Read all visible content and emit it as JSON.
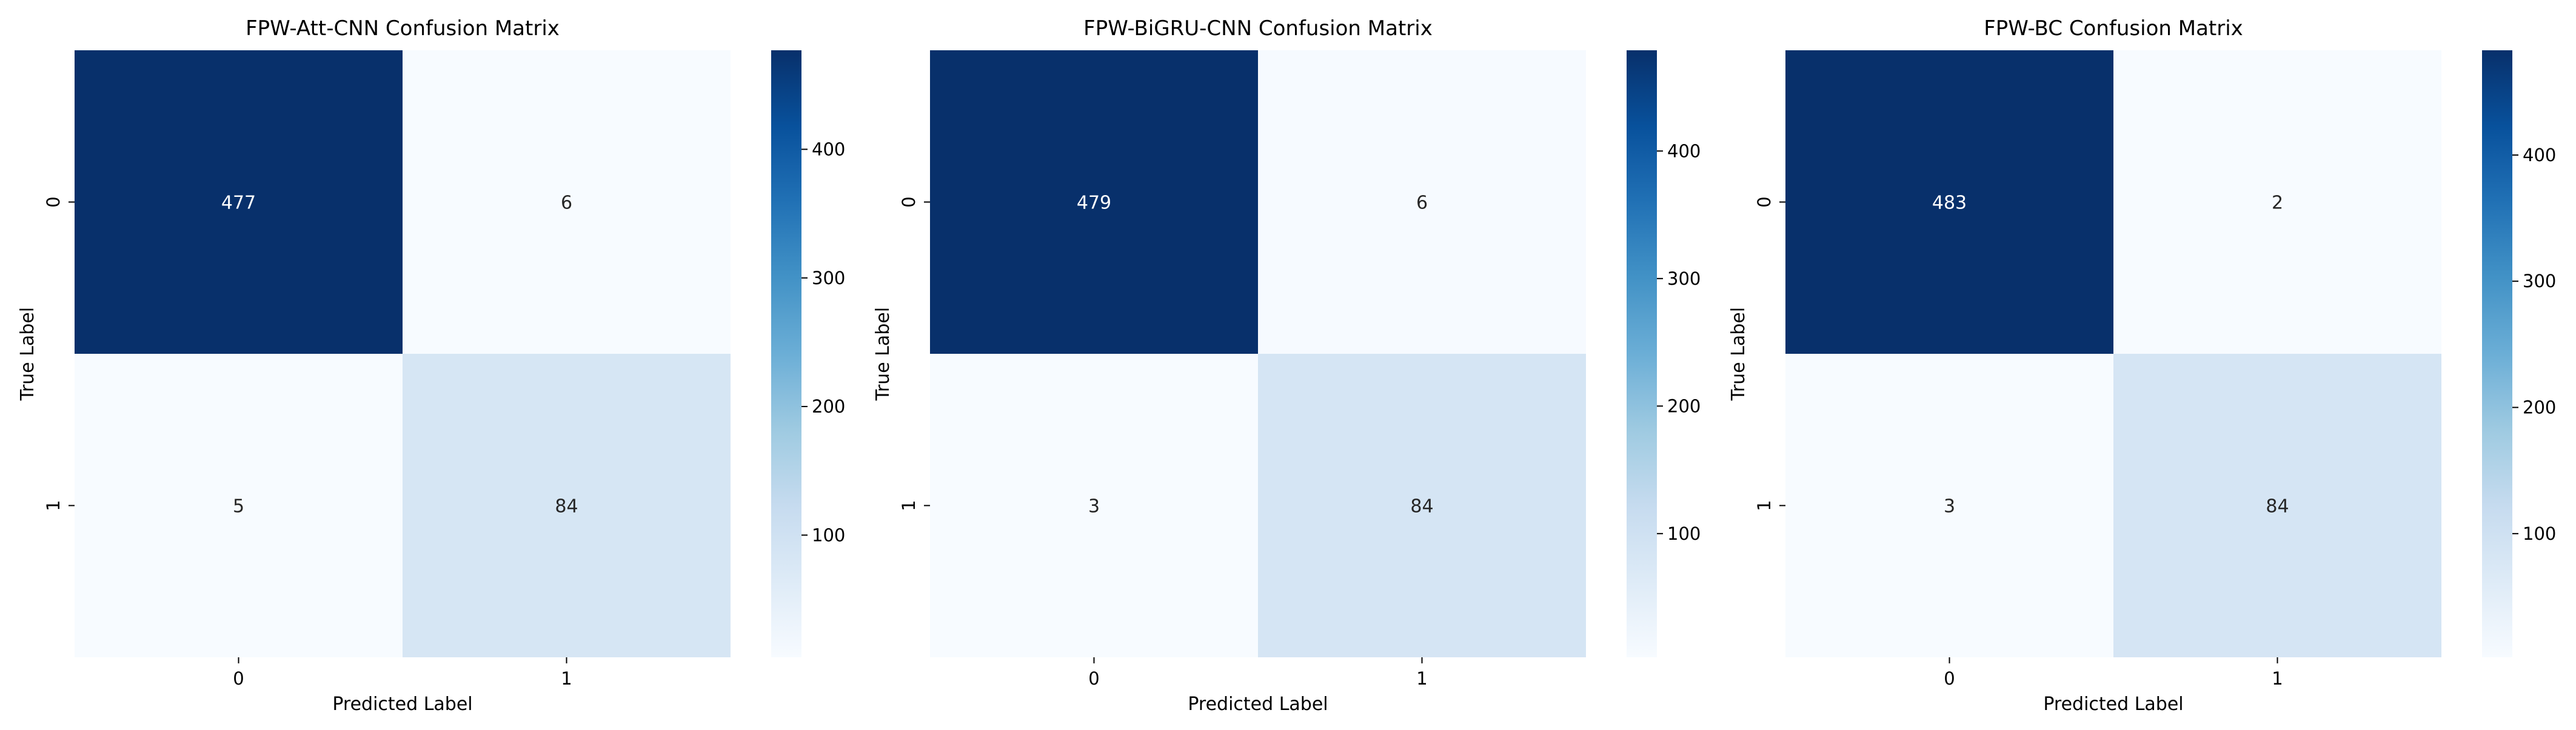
{
  "figure": {
    "panels": [
      {
        "title": "FPW-Att-CNN Confusion Matrix"
      },
      {
        "title": "FPW-BiGRU-CNN Confusion Matrix"
      },
      {
        "title": "FPW-BC Confusion Matrix"
      }
    ]
  },
  "chart_data": [
    {
      "type": "heatmap",
      "title": "FPW-Att-CNN Confusion Matrix",
      "xlabel": "Predicted Label",
      "ylabel": "True Label",
      "x_categories": [
        "0",
        "1"
      ],
      "y_categories": [
        "0",
        "1"
      ],
      "values": [
        [
          477,
          6
        ],
        [
          5,
          84
        ]
      ],
      "colormap": "Blues",
      "colorbar": {
        "min": 5,
        "max": 477,
        "ticks": [
          100,
          200,
          300,
          400
        ]
      }
    },
    {
      "type": "heatmap",
      "title": "FPW-BiGRU-CNN Confusion Matrix",
      "xlabel": "Predicted Label",
      "ylabel": "True Label",
      "x_categories": [
        "0",
        "1"
      ],
      "y_categories": [
        "0",
        "1"
      ],
      "values": [
        [
          479,
          6
        ],
        [
          3,
          84
        ]
      ],
      "colormap": "Blues",
      "colorbar": {
        "min": 3,
        "max": 479,
        "ticks": [
          100,
          200,
          300,
          400
        ]
      }
    },
    {
      "type": "heatmap",
      "title": "FPW-BC Confusion Matrix",
      "xlabel": "Predicted Label",
      "ylabel": "True Label",
      "x_categories": [
        "0",
        "1"
      ],
      "y_categories": [
        "0",
        "1"
      ],
      "values": [
        [
          483,
          2
        ],
        [
          3,
          84
        ]
      ],
      "colormap": "Blues",
      "colorbar": {
        "min": 2,
        "max": 483,
        "ticks": [
          100,
          200,
          300,
          400
        ]
      }
    }
  ]
}
